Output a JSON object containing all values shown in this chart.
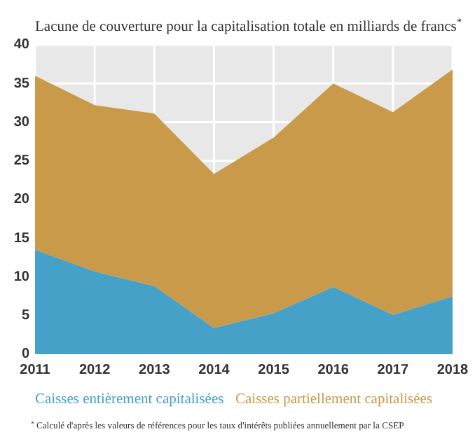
{
  "chart_data": {
    "type": "area",
    "stacked": true,
    "title": "Lacune de couverture pour la capitalisation totale en milliards de francs$^{*}$",
    "categories": [
      "2011",
      "2012",
      "2013",
      "2014",
      "2015",
      "2016",
      "2017",
      "2018"
    ],
    "series": [
      {
        "name": "Caisses entièrement capitalisées",
        "color": "#46a1c8",
        "values": [
          13.5,
          10.7,
          8.8,
          3.4,
          5.3,
          8.7,
          5.1,
          7.5
        ]
      },
      {
        "name": "Caisses partiellement capitalisées",
        "color": "#c89a4a",
        "values": [
          22.5,
          21.5,
          22.3,
          19.9,
          22.7,
          26.3,
          26.2,
          29.3
        ]
      }
    ],
    "ylim": [
      0,
      40
    ],
    "yticks": [
      0,
      5,
      10,
      15,
      20,
      25,
      30,
      35,
      40
    ],
    "grid": true,
    "legend": "bottom",
    "annotations": [
      "$^{*}$ Calculé d'après les valeurs de références pour les taux d'intérêts publiées annuellement par la CSEP"
    ]
  }
}
